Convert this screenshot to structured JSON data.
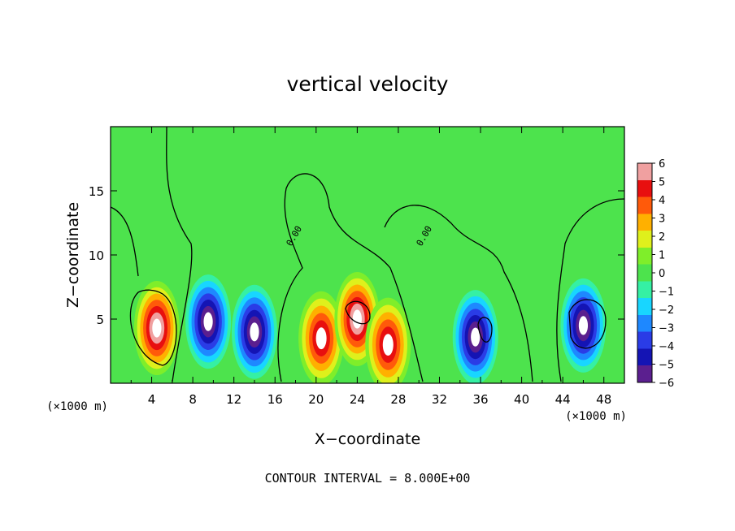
{
  "chart_data": {
    "type": "heatmap",
    "title": "vertical velocity",
    "xlabel": "X−coordinate",
    "ylabel": "Z−coordinate",
    "x_unit_left": "(×1000 m)",
    "x_unit_right": "(×1000 m)",
    "footer": "CONTOUR INTERVAL = 8.000E+00",
    "xlim": [
      0,
      50
    ],
    "ylim": [
      0,
      20
    ],
    "x_ticks": [
      "4",
      "8",
      "12",
      "16",
      "20",
      "24",
      "28",
      "32",
      "36",
      "40",
      "44",
      "48"
    ],
    "y_ticks": [
      "5",
      "10",
      "15"
    ],
    "colorbar_ticks": [
      "6",
      "5",
      "4",
      "3",
      "2",
      "1",
      "0",
      "−1",
      "−2",
      "−3",
      "−4",
      "−5",
      "−6"
    ],
    "contour_labels": [
      "0.00",
      "0.00"
    ],
    "colormap": [
      "#5b1f8f",
      "#1414b4",
      "#2a3ce6",
      "#1e88ff",
      "#18d6ff",
      "#35f0a4",
      "#4de34d",
      "#7fee2a",
      "#dff01c",
      "#ffb000",
      "#ff5a0a",
      "#e80f0f",
      "#f0a0a0"
    ],
    "features": [
      {
        "type": "updraft",
        "x": 4.5,
        "z": 4.3,
        "peak": 6
      },
      {
        "type": "updraft",
        "x": 20.5,
        "z": 3.5,
        "peak": 5
      },
      {
        "type": "updraft",
        "x": 24.0,
        "z": 5.0,
        "peak": 6
      },
      {
        "type": "updraft",
        "x": 27.0,
        "z": 3.0,
        "peak": 5
      },
      {
        "type": "downdraft",
        "x": 9.5,
        "z": 4.8,
        "peak": -6
      },
      {
        "type": "downdraft",
        "x": 14.0,
        "z": 4.0,
        "peak": -6
      },
      {
        "type": "downdraft",
        "x": 35.5,
        "z": 3.6,
        "peak": -6
      },
      {
        "type": "downdraft",
        "x": 46.0,
        "z": 4.5,
        "peak": -6
      }
    ]
  }
}
